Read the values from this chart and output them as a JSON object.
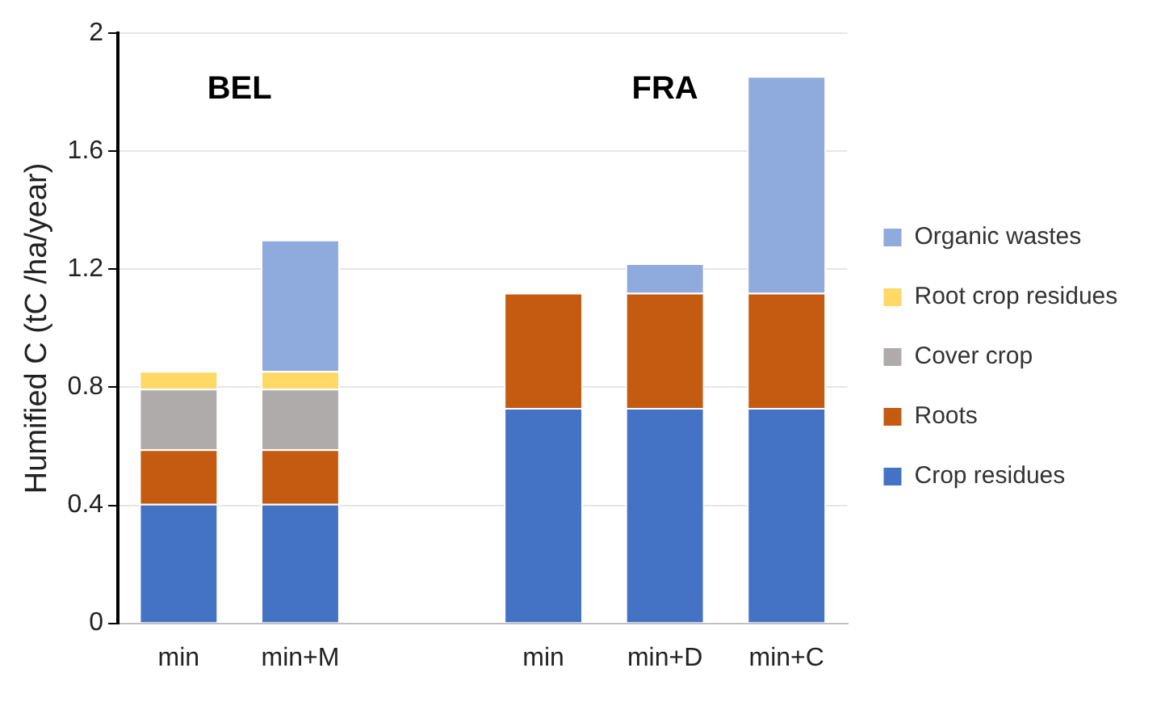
{
  "chart_data": {
    "type": "bar",
    "stacked": true,
    "ylabel": "Humified C (tC /ha/year)",
    "categories": [
      "min",
      "min+M",
      null,
      "min",
      "min+D",
      "min+C"
    ],
    "series": [
      {
        "name": "Crop residues",
        "color": "#4472c4",
        "values": [
          0.405,
          0.405,
          null,
          0.73,
          0.73,
          0.73
        ]
      },
      {
        "name": "Roots",
        "color": "#c55a11",
        "values": [
          0.185,
          0.185,
          null,
          0.39,
          0.39,
          0.39
        ]
      },
      {
        "name": "Cover crop",
        "color": "#afabab",
        "values": [
          0.205,
          0.205,
          null,
          null,
          null,
          null
        ]
      },
      {
        "name": "Root crop residues",
        "color": "#ffd966",
        "values": [
          0.06,
          0.06,
          null,
          null,
          null,
          null
        ]
      },
      {
        "name": "Organic wastes",
        "color": "#8faadc",
        "values": [
          null,
          0.445,
          null,
          null,
          0.1,
          0.735
        ]
      }
    ],
    "ylim": [
      0,
      2
    ],
    "yticks": [
      0,
      0.4,
      0.8,
      1.2,
      1.6,
      2
    ],
    "grid": "y",
    "legend": "right",
    "annotations": [
      "BEL",
      "FRA"
    ]
  }
}
